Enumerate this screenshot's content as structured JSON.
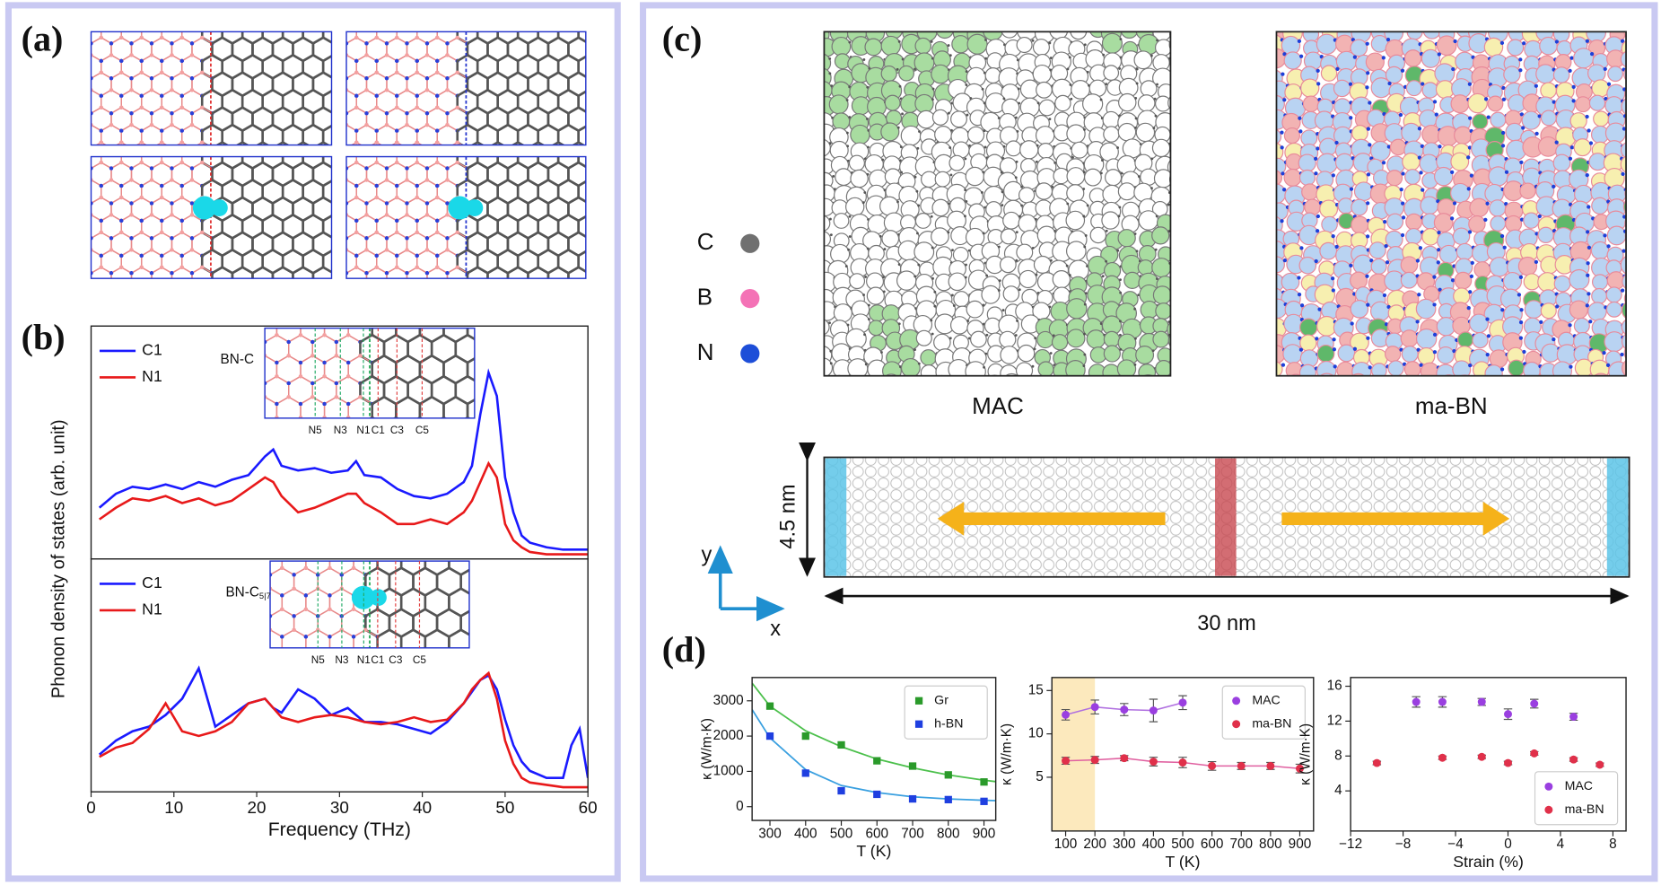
{
  "panels": {
    "a": {
      "label": "(a)",
      "axis": "x"
    },
    "b": {
      "label": "(b)",
      "ylabel": "Phonon density of states (arb. unit)"
    },
    "c": {
      "label": "(c)",
      "elements": [
        "C",
        "B",
        "N"
      ],
      "element_colors": [
        "#707070",
        "#f472b6",
        "#1d4ed8"
      ],
      "structures": [
        "MAC",
        "ma-BN"
      ],
      "height": "4.5 nm",
      "length": "30 nm",
      "axes": [
        "y",
        "x"
      ]
    },
    "d": {
      "label": "(d)"
    }
  },
  "chart_data": [
    {
      "type": "line",
      "xlim": [
        0,
        60
      ],
      "ylim": [
        0,
        100
      ],
      "legend": "upper left",
      "x": [
        1,
        3,
        5,
        7,
        9,
        11,
        13,
        15,
        17,
        19,
        21,
        22,
        23,
        25,
        27,
        29,
        31,
        32,
        33,
        35,
        37,
        39,
        41,
        43,
        45,
        46,
        47,
        48,
        49,
        50,
        51,
        52,
        53,
        55,
        57,
        58,
        59,
        60
      ],
      "series": [
        {
          "name": "C1",
          "color": "#1a1aff",
          "values": [
            22,
            28,
            31,
            30,
            32,
            30,
            33,
            31,
            34,
            36,
            44,
            47,
            40,
            38,
            39,
            37,
            38,
            42,
            36,
            35,
            30,
            27,
            26,
            28,
            33,
            40,
            62,
            80,
            70,
            35,
            20,
            10,
            7,
            5,
            4,
            4,
            4,
            4
          ]
        },
        {
          "name": "N1",
          "color": "#e8191a",
          "values": [
            17,
            22,
            26,
            25,
            27,
            24,
            26,
            23,
            25,
            30,
            35,
            33,
            27,
            20,
            22,
            25,
            28,
            28,
            24,
            20,
            15,
            15,
            17,
            15,
            20,
            25,
            33,
            41,
            35,
            15,
            8,
            5,
            3,
            2,
            2,
            2,
            2,
            2
          ]
        }
      ],
      "inset": {
        "label": "BN-C",
        "sites": [
          "N5",
          "N3",
          "N1",
          "C1",
          "C3",
          "C5"
        ]
      }
    },
    {
      "type": "line",
      "xlim": [
        0,
        60
      ],
      "ylim": [
        0,
        100
      ],
      "xticks": [
        0,
        10,
        20,
        30,
        40,
        50,
        60
      ],
      "xlabel": "Frequency (THz)",
      "legend": "upper left",
      "x": [
        1,
        3,
        5,
        7,
        9,
        11,
        13,
        15,
        17,
        19,
        21,
        22,
        23,
        25,
        27,
        29,
        31,
        32,
        33,
        35,
        37,
        39,
        41,
        43,
        45,
        46,
        47,
        48,
        49,
        50,
        51,
        52,
        53,
        55,
        57,
        58,
        59,
        60
      ],
      "series": [
        {
          "name": "C1",
          "color": "#1a1aff",
          "values": [
            16,
            22,
            26,
            28,
            33,
            40,
            53,
            28,
            33,
            38,
            40,
            36,
            34,
            44,
            40,
            33,
            36,
            33,
            30,
            30,
            29,
            27,
            25,
            30,
            38,
            43,
            48,
            50,
            44,
            31,
            20,
            13,
            9,
            6,
            6,
            20,
            27,
            6
          ]
        },
        {
          "name": "N1",
          "color": "#e8191a",
          "values": [
            15,
            19,
            21,
            27,
            38,
            26,
            24,
            26,
            30,
            38,
            40,
            36,
            32,
            30,
            32,
            33,
            32,
            31,
            30,
            29,
            30,
            32,
            30,
            31,
            38,
            44,
            48,
            51,
            40,
            22,
            12,
            6,
            4,
            3,
            2,
            2,
            2,
            2
          ]
        }
      ],
      "inset": {
        "label": "BN-C",
        "label_sub": "5|7",
        "sites": [
          "N5",
          "N3",
          "N1",
          "C1",
          "C3",
          "C5"
        ]
      }
    },
    {
      "type": "scatter",
      "xlim": [
        250,
        933
      ],
      "ylim": [
        -390,
        3660
      ],
      "xticks": [
        300,
        400,
        500,
        600,
        700,
        800,
        900
      ],
      "yticks": [
        0,
        1000,
        2000,
        3000
      ],
      "xlabel": "T (K)",
      "ylabel": "κ (W/m·K)",
      "legend": "upper right",
      "marker": "square",
      "series": [
        {
          "name": "Gr",
          "color": "#2a9a2a",
          "x": [
            300,
            400,
            500,
            600,
            700,
            800,
            900
          ],
          "values": [
            2850,
            2000,
            1750,
            1300,
            1150,
            900,
            700
          ]
        },
        {
          "name": "h-BN",
          "color": "#1f3fe0",
          "x": [
            300,
            400,
            500,
            600,
            700,
            800,
            900
          ],
          "values": [
            2000,
            950,
            450,
            350,
            220,
            200,
            150
          ]
        }
      ],
      "fits": [
        {
          "color": "#4cc04c",
          "x": [
            250,
            300,
            400,
            500,
            600,
            700,
            800,
            900,
            933
          ],
          "values": [
            3500,
            2850,
            2150,
            1700,
            1350,
            1100,
            900,
            750,
            710
          ]
        },
        {
          "color": "#3aa0e0",
          "x": [
            250,
            300,
            400,
            500,
            600,
            700,
            800,
            900,
            933
          ],
          "values": [
            2750,
            1950,
            1050,
            600,
            400,
            280,
            220,
            180,
            170
          ]
        }
      ]
    },
    {
      "type": "scatter",
      "xlim": [
        53,
        947
      ],
      "ylim": [
        -1.2,
        16.5
      ],
      "xticks": [
        100,
        200,
        300,
        400,
        500,
        600,
        700,
        800,
        900
      ],
      "yticks": [
        5,
        10,
        15
      ],
      "xlabel": "T (K)",
      "ylabel": "κ (W/m·K)",
      "legend": "upper right",
      "marker": "circle",
      "connect": true,
      "shade_x": [
        53,
        200
      ],
      "shade_color": "#fce9bd",
      "series": [
        {
          "name": "MAC",
          "color": "#9a3fe0",
          "line_color": "#b070e0",
          "x": [
            100,
            200,
            300,
            400,
            500
          ],
          "values": [
            12.2,
            13.1,
            12.8,
            12.7,
            13.6
          ],
          "errors": [
            0.6,
            0.8,
            0.7,
            1.3,
            0.8
          ]
        },
        {
          "name": "ma-BN",
          "color": "#e0304a",
          "line_color": "#e060a0",
          "x": [
            100,
            200,
            300,
            400,
            500,
            600,
            700,
            800,
            900
          ],
          "values": [
            6.9,
            7.0,
            7.2,
            6.8,
            6.7,
            6.3,
            6.3,
            6.3,
            6.0
          ],
          "errors": [
            0.4,
            0.4,
            0.3,
            0.5,
            0.6,
            0.5,
            0.4,
            0.4,
            0.5
          ]
        }
      ]
    },
    {
      "type": "scatter",
      "xlim": [
        -12,
        9
      ],
      "ylim": [
        -0.6,
        17
      ],
      "xticks": [
        {
          "value": -12,
          "label": "−12"
        },
        {
          "value": -8,
          "label": "−8"
        },
        {
          "value": -4,
          "label": "−4"
        },
        0,
        4,
        8
      ],
      "yticks": [
        4,
        8,
        12,
        16
      ],
      "xlabel": "Strain (%)",
      "ylabel": "κ (W/m·K)",
      "legend": "lower right",
      "marker": "circle",
      "series": [
        {
          "name": "MAC",
          "color": "#9a3fe0",
          "x": [
            -7,
            -5,
            -2,
            0,
            2,
            5
          ],
          "values": [
            14.2,
            14.2,
            14.2,
            12.8,
            14.0,
            12.5
          ],
          "errors": [
            0.6,
            0.6,
            0.4,
            0.6,
            0.5,
            0.4
          ]
        },
        {
          "name": "ma-BN",
          "color": "#e0304a",
          "x": [
            -10,
            -5,
            -2,
            0,
            2,
            5,
            7
          ],
          "values": [
            7.2,
            7.8,
            7.9,
            7.2,
            8.3,
            7.6,
            7.0
          ],
          "errors": [
            0.2,
            0.2,
            0.2,
            0.2,
            0.2,
            0.2,
            0.2
          ]
        }
      ]
    }
  ]
}
